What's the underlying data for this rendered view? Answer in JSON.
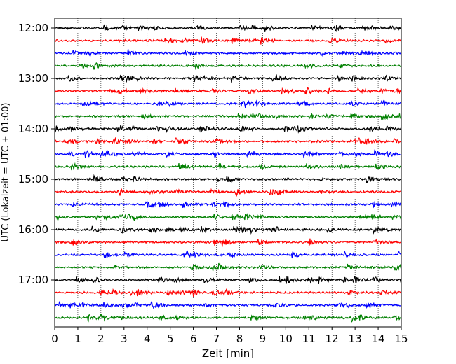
{
  "chart_data": {
    "type": "line",
    "title": "",
    "xlabel": "Zeit  [min]",
    "ylabel": "UTC (Lokalzeit = UTC + 01:00)",
    "xlim": [
      0,
      15
    ],
    "xticks": [
      0,
      1,
      2,
      3,
      4,
      5,
      6,
      7,
      8,
      9,
      10,
      11,
      12,
      13,
      14,
      15
    ],
    "y_tick_labels": [
      "12:00",
      "13:00",
      "14:00",
      "15:00",
      "16:00",
      "17:00"
    ],
    "row_interval_min": 15,
    "trace_color_cycle": [
      "#000000",
      "#ff0000",
      "#0000ff",
      "#008000"
    ],
    "grid": "vertical-dotted",
    "traces": [
      {
        "start": "12:00",
        "color": "#000000"
      },
      {
        "start": "12:15",
        "color": "#ff0000"
      },
      {
        "start": "12:30",
        "color": "#0000ff"
      },
      {
        "start": "12:45",
        "color": "#008000"
      },
      {
        "start": "13:00",
        "color": "#000000"
      },
      {
        "start": "13:15",
        "color": "#ff0000"
      },
      {
        "start": "13:30",
        "color": "#0000ff"
      },
      {
        "start": "13:45",
        "color": "#008000"
      },
      {
        "start": "14:00",
        "color": "#000000"
      },
      {
        "start": "14:15",
        "color": "#ff0000"
      },
      {
        "start": "14:30",
        "color": "#0000ff"
      },
      {
        "start": "14:45",
        "color": "#008000"
      },
      {
        "start": "15:00",
        "color": "#000000"
      },
      {
        "start": "15:15",
        "color": "#ff0000"
      },
      {
        "start": "15:30",
        "color": "#0000ff"
      },
      {
        "start": "15:45",
        "color": "#008000"
      },
      {
        "start": "16:00",
        "color": "#000000"
      },
      {
        "start": "16:15",
        "color": "#ff0000"
      },
      {
        "start": "16:30",
        "color": "#0000ff"
      },
      {
        "start": "16:45",
        "color": "#008000"
      },
      {
        "start": "17:00",
        "color": "#000000"
      },
      {
        "start": "17:15",
        "color": "#ff0000"
      },
      {
        "start": "17:30",
        "color": "#0000ff"
      },
      {
        "start": "17:45",
        "color": "#008000"
      }
    ]
  }
}
